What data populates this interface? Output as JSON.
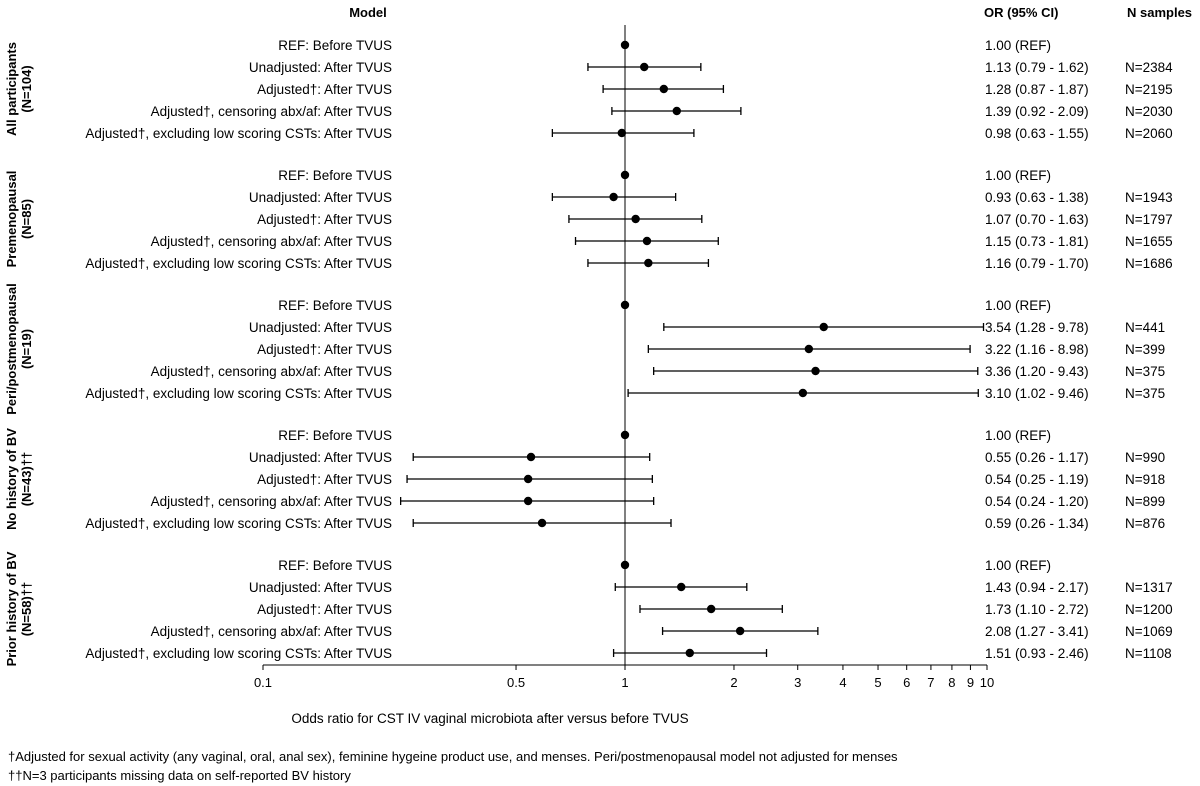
{
  "chart_data": {
    "type": "forest",
    "headers": {
      "model": "Model",
      "or": "OR (95% CI)",
      "n": "N samples"
    },
    "xlabel": "Odds ratio for CST IV vaginal microbiota after versus before TVUS",
    "x_scale": "log",
    "xlim": [
      0.1,
      10
    ],
    "reference_line": 1,
    "ticks": [
      {
        "value": 0.1,
        "label": "0.1"
      },
      {
        "value": 0.5,
        "label": "0.5"
      },
      {
        "value": 1,
        "label": "1"
      },
      {
        "value": 2,
        "label": "2"
      },
      {
        "value": 3,
        "label": "3"
      },
      {
        "value": 4,
        "label": "4"
      },
      {
        "value": 5,
        "label": "5"
      },
      {
        "value": 6,
        "label": "6"
      },
      {
        "value": 7,
        "label": "7"
      },
      {
        "value": 8,
        "label": "8"
      },
      {
        "value": 9,
        "label": "9"
      },
      {
        "value": 10,
        "label": "10"
      }
    ],
    "groups": [
      {
        "label_lines": [
          "All participants",
          "(N=104)"
        ],
        "rows": [
          {
            "label": "REF: Before TVUS",
            "or": 1.0,
            "lo": null,
            "hi": null,
            "or_text": "1.00 (REF)",
            "n": ""
          },
          {
            "label": "Unadjusted: After TVUS",
            "or": 1.13,
            "lo": 0.79,
            "hi": 1.62,
            "or_text": "1.13 (0.79 - 1.62)",
            "n": "N=2384"
          },
          {
            "label": "Adjusted†: After TVUS",
            "or": 1.28,
            "lo": 0.87,
            "hi": 1.87,
            "or_text": "1.28 (0.87 - 1.87)",
            "n": "N=2195"
          },
          {
            "label": "Adjusted†, censoring abx/af: After TVUS",
            "or": 1.39,
            "lo": 0.92,
            "hi": 2.09,
            "or_text": "1.39 (0.92 - 2.09)",
            "n": "N=2030"
          },
          {
            "label": "Adjusted†, excluding low scoring CSTs: After TVUS",
            "or": 0.98,
            "lo": 0.63,
            "hi": 1.55,
            "or_text": "0.98 (0.63 - 1.55)",
            "n": "N=2060"
          }
        ]
      },
      {
        "label_lines": [
          "Premenopausal",
          "(N=85)"
        ],
        "rows": [
          {
            "label": "REF: Before TVUS",
            "or": 1.0,
            "lo": null,
            "hi": null,
            "or_text": "1.00 (REF)",
            "n": ""
          },
          {
            "label": "Unadjusted: After TVUS",
            "or": 0.93,
            "lo": 0.63,
            "hi": 1.38,
            "or_text": "0.93 (0.63 - 1.38)",
            "n": "N=1943"
          },
          {
            "label": "Adjusted†: After TVUS",
            "or": 1.07,
            "lo": 0.7,
            "hi": 1.63,
            "or_text": "1.07 (0.70 - 1.63)",
            "n": "N=1797"
          },
          {
            "label": "Adjusted†, censoring abx/af: After TVUS",
            "or": 1.15,
            "lo": 0.73,
            "hi": 1.81,
            "or_text": "1.15 (0.73 - 1.81)",
            "n": "N=1655"
          },
          {
            "label": "Adjusted†, excluding low scoring CSTs: After TVUS",
            "or": 1.16,
            "lo": 0.79,
            "hi": 1.7,
            "or_text": "1.16 (0.79 - 1.70)",
            "n": "N=1686"
          }
        ]
      },
      {
        "label_lines": [
          "Peri/postmenopausal",
          "(N=19)"
        ],
        "rows": [
          {
            "label": "REF: Before TVUS",
            "or": 1.0,
            "lo": null,
            "hi": null,
            "or_text": "1.00 (REF)",
            "n": ""
          },
          {
            "label": "Unadjusted: After TVUS",
            "or": 3.54,
            "lo": 1.28,
            "hi": 9.78,
            "or_text": "3.54 (1.28 - 9.78)",
            "n": "N=441"
          },
          {
            "label": "Adjusted†: After TVUS",
            "or": 3.22,
            "lo": 1.16,
            "hi": 8.98,
            "or_text": "3.22 (1.16 - 8.98)",
            "n": "N=399"
          },
          {
            "label": "Adjusted†, censoring abx/af: After TVUS",
            "or": 3.36,
            "lo": 1.2,
            "hi": 9.43,
            "or_text": "3.36 (1.20 - 9.43)",
            "n": "N=375"
          },
          {
            "label": "Adjusted†, excluding low scoring CSTs: After TVUS",
            "or": 3.1,
            "lo": 1.02,
            "hi": 9.46,
            "or_text": "3.10 (1.02 - 9.46)",
            "n": "N=375"
          }
        ]
      },
      {
        "label_lines": [
          "No history of BV",
          "(N=43)††"
        ],
        "rows": [
          {
            "label": "REF: Before TVUS",
            "or": 1.0,
            "lo": null,
            "hi": null,
            "or_text": "1.00 (REF)",
            "n": ""
          },
          {
            "label": "Unadjusted: After TVUS",
            "or": 0.55,
            "lo": 0.26,
            "hi": 1.17,
            "or_text": "0.55 (0.26 - 1.17)",
            "n": "N=990"
          },
          {
            "label": "Adjusted†: After TVUS",
            "or": 0.54,
            "lo": 0.25,
            "hi": 1.19,
            "or_text": "0.54 (0.25 - 1.19)",
            "n": "N=918"
          },
          {
            "label": "Adjusted†, censoring abx/af: After TVUS",
            "or": 0.54,
            "lo": 0.24,
            "hi": 1.2,
            "or_text": "0.54 (0.24 - 1.20)",
            "n": "N=899"
          },
          {
            "label": "Adjusted†, excluding low scoring CSTs: After TVUS",
            "or": 0.59,
            "lo": 0.26,
            "hi": 1.34,
            "or_text": "0.59 (0.26 - 1.34)",
            "n": "N=876"
          }
        ]
      },
      {
        "label_lines": [
          "Prior history of BV",
          "(N=58)††"
        ],
        "rows": [
          {
            "label": "REF: Before TVUS",
            "or": 1.0,
            "lo": null,
            "hi": null,
            "or_text": "1.00 (REF)",
            "n": ""
          },
          {
            "label": "Unadjusted: After TVUS",
            "or": 1.43,
            "lo": 0.94,
            "hi": 2.17,
            "or_text": "1.43 (0.94 - 2.17)",
            "n": "N=1317"
          },
          {
            "label": "Adjusted†: After TVUS",
            "or": 1.73,
            "lo": 1.1,
            "hi": 2.72,
            "or_text": "1.73 (1.10 - 2.72)",
            "n": "N=1200"
          },
          {
            "label": "Adjusted†, censoring abx/af: After TVUS",
            "or": 2.08,
            "lo": 1.27,
            "hi": 3.41,
            "or_text": "2.08 (1.27 - 3.41)",
            "n": "N=1069"
          },
          {
            "label": "Adjusted†, excluding low scoring CSTs: After TVUS",
            "or": 1.51,
            "lo": 0.93,
            "hi": 2.46,
            "or_text": "1.51 (0.93 - 2.46)",
            "n": "N=1108"
          }
        ]
      }
    ]
  },
  "footnotes": {
    "adjusted": "†Adjusted for sexual activity (any vaginal, oral, anal sex), feminine hygeine product use, and menses. Peri/postmenopausal model not adjusted for menses",
    "missing": "††N=3 participants missing data on self-reported BV history"
  }
}
